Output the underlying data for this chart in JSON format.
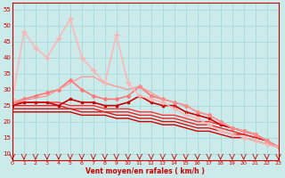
{
  "xlabel": "Vent moyen/en rafales ( km/h )",
  "xlim": [
    0,
    23
  ],
  "ylim": [
    8,
    57
  ],
  "yticks": [
    10,
    15,
    20,
    25,
    30,
    35,
    40,
    45,
    50,
    55
  ],
  "xticks": [
    0,
    1,
    2,
    3,
    4,
    5,
    6,
    7,
    8,
    9,
    10,
    11,
    12,
    13,
    14,
    15,
    16,
    17,
    18,
    19,
    20,
    21,
    22,
    23
  ],
  "bg_color": "#cbeaea",
  "grid_color": "#a8d8d8",
  "lines": [
    {
      "x": [
        0,
        1,
        2,
        3,
        4,
        5,
        6,
        7,
        8,
        9,
        10,
        11,
        12,
        13,
        14,
        15,
        16,
        17,
        18,
        19,
        20,
        21,
        22,
        23
      ],
      "y": [
        23,
        23,
        23,
        23,
        23,
        23,
        22,
        22,
        22,
        21,
        21,
        20,
        20,
        19,
        19,
        18,
        17,
        17,
        16,
        15,
        15,
        14,
        13,
        12
      ],
      "color": "#cc0000",
      "lw": 1.0,
      "marker": null,
      "ms": 0
    },
    {
      "x": [
        0,
        1,
        2,
        3,
        4,
        5,
        6,
        7,
        8,
        9,
        10,
        11,
        12,
        13,
        14,
        15,
        16,
        17,
        18,
        19,
        20,
        21,
        22,
        23
      ],
      "y": [
        24,
        24,
        24,
        24,
        24,
        24,
        23,
        23,
        23,
        22,
        22,
        21,
        21,
        20,
        20,
        19,
        18,
        18,
        17,
        16,
        16,
        15,
        14,
        12
      ],
      "color": "#dd1111",
      "lw": 1.0,
      "marker": null,
      "ms": 0
    },
    {
      "x": [
        0,
        1,
        2,
        3,
        4,
        5,
        6,
        7,
        8,
        9,
        10,
        11,
        12,
        13,
        14,
        15,
        16,
        17,
        18,
        19,
        20,
        21,
        22,
        23
      ],
      "y": [
        25,
        25,
        25,
        25,
        25,
        24,
        24,
        24,
        23,
        23,
        23,
        22,
        22,
        21,
        21,
        20,
        19,
        19,
        18,
        17,
        16,
        15,
        14,
        12
      ],
      "color": "#ee2222",
      "lw": 1.0,
      "marker": null,
      "ms": 0
    },
    {
      "x": [
        0,
        1,
        2,
        3,
        4,
        5,
        6,
        7,
        8,
        9,
        10,
        11,
        12,
        13,
        14,
        15,
        16,
        17,
        18,
        19,
        20,
        21,
        22,
        23
      ],
      "y": [
        26,
        26,
        26,
        26,
        26,
        25,
        25,
        25,
        24,
        24,
        24,
        23,
        23,
        22,
        22,
        21,
        20,
        20,
        19,
        18,
        17,
        16,
        14,
        12
      ],
      "color": "#ff3333",
      "lw": 1.0,
      "marker": null,
      "ms": 0
    },
    {
      "x": [
        0,
        1,
        2,
        3,
        4,
        5,
        6,
        7,
        8,
        9,
        10,
        11,
        12,
        13,
        14,
        15,
        16,
        17,
        18,
        19,
        20,
        21,
        22,
        23
      ],
      "y": [
        25,
        26,
        26,
        26,
        25,
        27,
        26,
        26,
        25,
        25,
        26,
        28,
        26,
        25,
        25,
        23,
        22,
        21,
        19,
        18,
        17,
        16,
        14,
        12
      ],
      "color": "#cc0000",
      "lw": 1.2,
      "marker": "s",
      "ms": 2.0
    },
    {
      "x": [
        0,
        1,
        2,
        3,
        4,
        5,
        6,
        7,
        8,
        9,
        10,
        11,
        12,
        13,
        14,
        15,
        16,
        17,
        18,
        19,
        20,
        21,
        22,
        23
      ],
      "y": [
        26,
        27,
        28,
        29,
        30,
        33,
        30,
        28,
        27,
        27,
        28,
        31,
        28,
        27,
        26,
        25,
        23,
        22,
        20,
        18,
        17,
        16,
        14,
        12
      ],
      "color": "#ff7777",
      "lw": 1.2,
      "marker": "D",
      "ms": 2.0
    },
    {
      "x": [
        0,
        3,
        4,
        5,
        6,
        7,
        8,
        9,
        10,
        11,
        12,
        13,
        14,
        15,
        16,
        17,
        18,
        19,
        20,
        21,
        22,
        23
      ],
      "y": [
        26,
        28,
        30,
        32,
        34,
        34,
        32,
        31,
        30,
        31,
        29,
        27,
        26,
        25,
        23,
        22,
        20,
        18,
        17,
        16,
        14,
        12
      ],
      "color": "#ff9999",
      "lw": 1.0,
      "marker": null,
      "ms": 0
    },
    {
      "x": [
        0,
        1,
        2,
        3,
        4,
        5,
        6,
        7,
        8,
        9,
        10,
        11,
        12,
        13,
        14,
        15,
        16,
        17,
        18,
        19,
        20,
        21,
        22,
        23
      ],
      "y": [
        27,
        48,
        43,
        40,
        46,
        52,
        40,
        36,
        32,
        47,
        32,
        28,
        27,
        26,
        24,
        22,
        21,
        19,
        17,
        16,
        15,
        14,
        13,
        12
      ],
      "color": "#ffaaaa",
      "lw": 1.0,
      "marker": "+",
      "ms": 4.0
    },
    {
      "x": [
        0,
        1,
        2,
        3,
        4,
        5,
        6,
        7,
        8,
        9,
        10,
        11,
        12,
        13,
        14,
        15,
        16,
        17,
        18,
        19,
        20,
        21,
        22,
        23
      ],
      "y": [
        27,
        48,
        43,
        40,
        46,
        52,
        40,
        36,
        32,
        47,
        32,
        28,
        27,
        26,
        24,
        22,
        21,
        19,
        17,
        16,
        15,
        14,
        13,
        12
      ],
      "color": "#ffbbbb",
      "lw": 0.8,
      "marker": null,
      "ms": 0
    }
  ]
}
